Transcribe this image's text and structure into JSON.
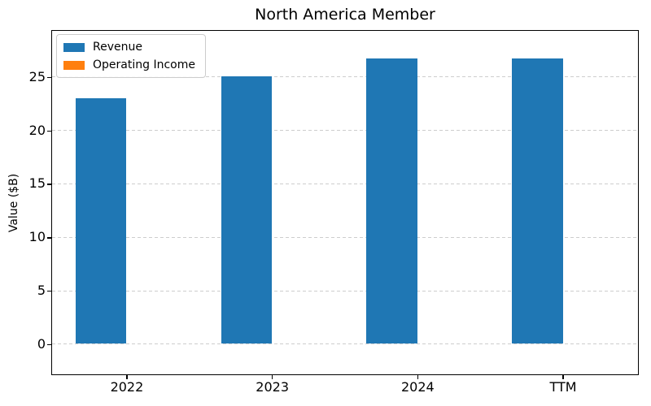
{
  "chart_data": {
    "type": "bar",
    "title": "North America Member",
    "ylabel": "Value ($B)",
    "categories": [
      "2022",
      "2023",
      "2024",
      "TTM"
    ],
    "series": [
      {
        "name": "Revenue",
        "color": "#1f77b4",
        "values": [
          23.0,
          25.0,
          26.7,
          26.7
        ]
      },
      {
        "name": "Operating Income",
        "color": "#ff7f0e",
        "values": [
          0,
          0,
          0,
          0
        ]
      }
    ],
    "yticks": [
      0,
      5,
      10,
      15,
      20,
      25
    ],
    "ylim": [
      -2.9,
      29.4
    ],
    "bar_width_fraction": 0.35,
    "legend": {
      "position": "upper left",
      "entries": [
        "Revenue",
        "Operating Income"
      ]
    },
    "grid": {
      "axis": "y",
      "style": "dashed",
      "color": "#cccccc"
    },
    "axis_color": "#000000",
    "background": "#ffffff"
  }
}
